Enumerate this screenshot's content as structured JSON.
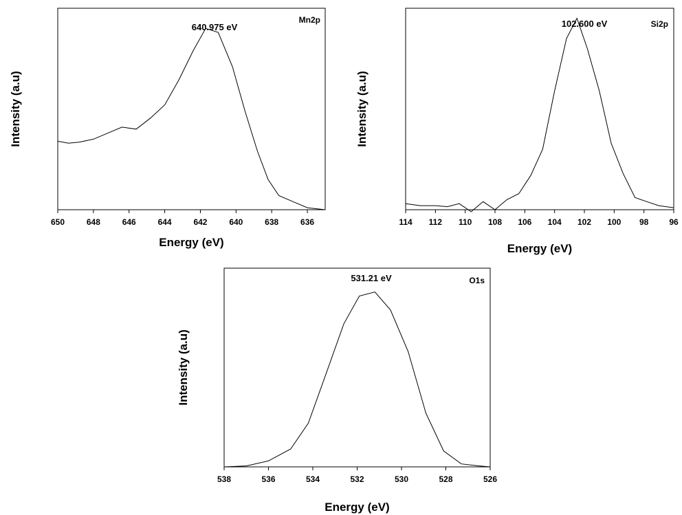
{
  "chart_data": [
    {
      "type": "line",
      "tag": "Mn2p",
      "peak_label": "640.975 eV",
      "xlabel": "Energy (eV)",
      "ylabel": "Intensity (a.u)",
      "xlim": [
        650,
        635
      ],
      "ylim": [
        0,
        100
      ],
      "xticks": [
        "650",
        "648",
        "646",
        "644",
        "642",
        "640",
        "638",
        "636"
      ],
      "xtick_values": [
        650,
        648,
        646,
        644,
        642,
        640,
        638,
        636
      ],
      "series": [
        {
          "x": [
            650,
            649.4,
            648.8,
            648,
            647.2,
            646.4,
            645.6,
            644.8,
            644,
            643.2,
            642.4,
            641.7,
            641.0,
            640.2,
            639.5,
            638.8,
            638.2,
            637.6,
            636.8,
            636,
            635
          ],
          "y": [
            34,
            33,
            33.5,
            35,
            38,
            41,
            40,
            45.5,
            52,
            64.5,
            79,
            90,
            88,
            71,
            49,
            29,
            15,
            7,
            4,
            1,
            0
          ]
        }
      ]
    },
    {
      "type": "line",
      "tag": "Si2p",
      "peak_label": "102.600 eV",
      "xlabel": "Energy (eV)",
      "ylabel": "Intensity (a.u)",
      "xlim": [
        114,
        96
      ],
      "ylim": [
        0,
        100
      ],
      "xticks": [
        "114",
        "112",
        "110",
        "108",
        "106",
        "104",
        "102",
        "100",
        "98",
        "96"
      ],
      "xtick_values": [
        114,
        112,
        110,
        108,
        106,
        104,
        102,
        100,
        98,
        96
      ],
      "series": [
        {
          "x": [
            114,
            113,
            112,
            111.2,
            110.4,
            109.6,
            108.8,
            108,
            107.2,
            106.4,
            105.6,
            104.8,
            104,
            103.2,
            102.5,
            101.8,
            101,
            100.2,
            99.4,
            98.6,
            97.8,
            97,
            96
          ],
          "y": [
            3,
            2,
            2,
            1.5,
            3,
            -1,
            4,
            0,
            5,
            8,
            17,
            30,
            59,
            85,
            95,
            80,
            59,
            33,
            18,
            6,
            4,
            2,
            1
          ]
        }
      ]
    },
    {
      "type": "line",
      "tag": "O1s",
      "peak_label": "531.21 eV",
      "xlabel": "Energy (eV)",
      "ylabel": "Intensity (a.u)",
      "xlim": [
        538,
        526
      ],
      "ylim": [
        0,
        100
      ],
      "xticks": [
        "538",
        "536",
        "534",
        "532",
        "530",
        "528",
        "526"
      ],
      "xtick_values": [
        538,
        536,
        534,
        532,
        530,
        528,
        526
      ],
      "series": [
        {
          "x": [
            538,
            537,
            536,
            535,
            534.2,
            533.4,
            532.6,
            531.9,
            531.2,
            530.5,
            529.7,
            528.9,
            528.1,
            527.3,
            526.5,
            526
          ],
          "y": [
            0,
            0.5,
            3,
            9,
            22,
            47,
            72,
            86,
            88,
            79,
            58,
            27,
            8,
            1.5,
            0.5,
            0
          ]
        }
      ]
    }
  ]
}
